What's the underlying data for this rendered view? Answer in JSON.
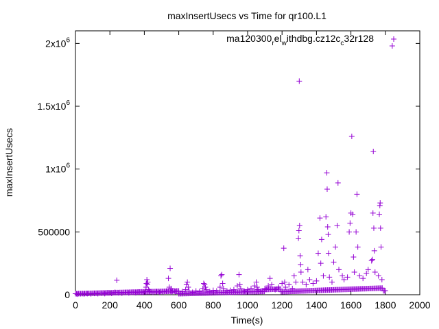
{
  "chart_data": {
    "type": "scatter",
    "title": "maxInsertUsecs vs Time for qr100.L1",
    "xlabel": "Time(s)",
    "ylabel": "maxInsertUsecs",
    "xlim": [
      0,
      2000
    ],
    "ylim": [
      0,
      2100000
    ],
    "x_ticks": [
      "0",
      "200",
      "400",
      "600",
      "800",
      "1000",
      "1200",
      "1400",
      "1600",
      "1800",
      "2000"
    ],
    "y_ticks": [
      {
        "value": 0,
        "label": "0"
      },
      {
        "value": 500000,
        "label": "500000"
      },
      {
        "value": 1000000,
        "label": "1x10",
        "exp": "6"
      },
      {
        "value": 1500000,
        "label": "1.5x10",
        "exp": "6"
      },
      {
        "value": 2000000,
        "label": "2x10",
        "exp": "6"
      }
    ],
    "grid": false,
    "legend_placement": "top-right",
    "series": [
      {
        "name": "ma120300_rel_withdbg.cz12c_c32r128",
        "legend_parts": [
          {
            "t": "ma120300",
            "s": "n"
          },
          {
            "t": "r",
            "s": "sub"
          },
          {
            "t": "el",
            "s": "n"
          },
          {
            "t": "w",
            "s": "sub"
          },
          {
            "t": "ithdbg.cz12c",
            "s": "n"
          },
          {
            "t": "c",
            "s": "sub"
          },
          {
            "t": "32r128",
            "s": "n"
          }
        ],
        "color": "#9400d3",
        "points": [
          [
            10,
            5000
          ],
          [
            30,
            8000
          ],
          [
            50,
            6000
          ],
          [
            70,
            9000
          ],
          [
            90,
            7000
          ],
          [
            110,
            10000
          ],
          [
            130,
            8000
          ],
          [
            150,
            12000
          ],
          [
            170,
            9000
          ],
          [
            190,
            15000
          ],
          [
            210,
            11000
          ],
          [
            230,
            20000
          ],
          [
            240,
            115000
          ],
          [
            250,
            15000
          ],
          [
            270,
            12000
          ],
          [
            290,
            18000
          ],
          [
            310,
            14000
          ],
          [
            330,
            20000
          ],
          [
            350,
            16000
          ],
          [
            370,
            22000
          ],
          [
            390,
            18000
          ],
          [
            405,
            25000
          ],
          [
            410,
            60000
          ],
          [
            412,
            90000
          ],
          [
            415,
            120000
          ],
          [
            418,
            80000
          ],
          [
            420,
            100000
          ],
          [
            425,
            40000
          ],
          [
            430,
            30000
          ],
          [
            450,
            20000
          ],
          [
            470,
            25000
          ],
          [
            490,
            18000
          ],
          [
            510,
            22000
          ],
          [
            530,
            30000
          ],
          [
            540,
            130000
          ],
          [
            545,
            60000
          ],
          [
            550,
            210000
          ],
          [
            555,
            50000
          ],
          [
            560,
            20000
          ],
          [
            580,
            25000
          ],
          [
            600,
            30000
          ],
          [
            620,
            25000
          ],
          [
            640,
            40000
          ],
          [
            645,
            80000
          ],
          [
            650,
            100000
          ],
          [
            655,
            60000
          ],
          [
            660,
            30000
          ],
          [
            680,
            20000
          ],
          [
            700,
            30000
          ],
          [
            720,
            25000
          ],
          [
            740,
            50000
          ],
          [
            745,
            90000
          ],
          [
            750,
            80000
          ],
          [
            755,
            60000
          ],
          [
            760,
            40000
          ],
          [
            780,
            25000
          ],
          [
            800,
            35000
          ],
          [
            820,
            30000
          ],
          [
            840,
            60000
          ],
          [
            845,
            150000
          ],
          [
            850,
            160000
          ],
          [
            855,
            90000
          ],
          [
            860,
            50000
          ],
          [
            880,
            30000
          ],
          [
            900,
            35000
          ],
          [
            920,
            40000
          ],
          [
            940,
            70000
          ],
          [
            950,
            160000
          ],
          [
            955,
            80000
          ],
          [
            960,
            50000
          ],
          [
            980,
            30000
          ],
          [
            1000,
            40000
          ],
          [
            1020,
            50000
          ],
          [
            1040,
            70000
          ],
          [
            1050,
            100000
          ],
          [
            1055,
            60000
          ],
          [
            1060,
            40000
          ],
          [
            1080,
            30000
          ],
          [
            1100,
            50000
          ],
          [
            1120,
            70000
          ],
          [
            1130,
            130000
          ],
          [
            1140,
            80000
          ],
          [
            1160,
            40000
          ],
          [
            1180,
            60000
          ],
          [
            1200,
            90000
          ],
          [
            1210,
            370000
          ],
          [
            1215,
            100000
          ],
          [
            1220,
            60000
          ],
          [
            1240,
            80000
          ],
          [
            1260,
            50000
          ],
          [
            1270,
            150000
          ],
          [
            1280,
            100000
          ],
          [
            1295,
            450000
          ],
          [
            1298,
            510000
          ],
          [
            1300,
            1700000
          ],
          [
            1302,
            550000
          ],
          [
            1305,
            310000
          ],
          [
            1308,
            240000
          ],
          [
            1310,
            180000
          ],
          [
            1320,
            100000
          ],
          [
            1340,
            80000
          ],
          [
            1350,
            200000
          ],
          [
            1360,
            120000
          ],
          [
            1380,
            90000
          ],
          [
            1400,
            110000
          ],
          [
            1410,
            330000
          ],
          [
            1420,
            610000
          ],
          [
            1425,
            250000
          ],
          [
            1430,
            440000
          ],
          [
            1440,
            150000
          ],
          [
            1455,
            620000
          ],
          [
            1460,
            970000
          ],
          [
            1462,
            840000
          ],
          [
            1465,
            540000
          ],
          [
            1468,
            480000
          ],
          [
            1470,
            330000
          ],
          [
            1475,
            140000
          ],
          [
            1490,
            100000
          ],
          [
            1500,
            260000
          ],
          [
            1510,
            380000
          ],
          [
            1520,
            550000
          ],
          [
            1525,
            890000
          ],
          [
            1530,
            200000
          ],
          [
            1550,
            150000
          ],
          [
            1560,
            120000
          ],
          [
            1580,
            140000
          ],
          [
            1590,
            500000
          ],
          [
            1595,
            570000
          ],
          [
            1600,
            650000
          ],
          [
            1605,
            1260000
          ],
          [
            1610,
            640000
          ],
          [
            1615,
            300000
          ],
          [
            1620,
            180000
          ],
          [
            1630,
            500000
          ],
          [
            1635,
            800000
          ],
          [
            1640,
            380000
          ],
          [
            1650,
            150000
          ],
          [
            1670,
            130000
          ],
          [
            1690,
            170000
          ],
          [
            1700,
            200000
          ],
          [
            1720,
            270000
          ],
          [
            1725,
            280000
          ],
          [
            1728,
            650000
          ],
          [
            1730,
            1140000
          ],
          [
            1733,
            530000
          ],
          [
            1736,
            350000
          ],
          [
            1740,
            180000
          ],
          [
            1760,
            150000
          ],
          [
            1765,
            640000
          ],
          [
            1768,
            710000
          ],
          [
            1770,
            730000
          ],
          [
            1772,
            530000
          ],
          [
            1775,
            380000
          ],
          [
            1780,
            120000
          ],
          [
            1840,
            1980000
          ]
        ]
      }
    ]
  }
}
